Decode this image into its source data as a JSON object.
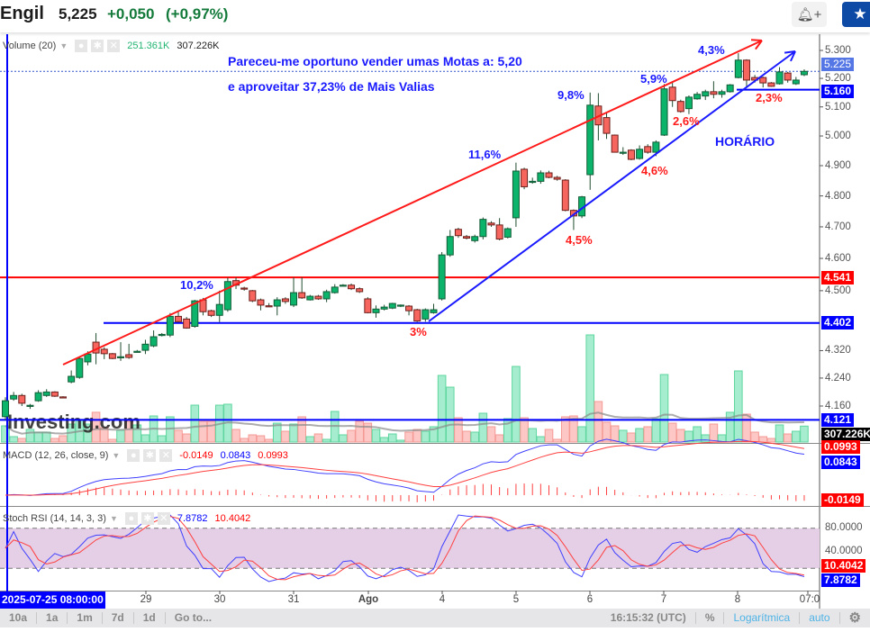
{
  "header": {
    "symbol": "Engil",
    "price": "5,225",
    "change": "+0,050",
    "change_pct": "(+0,97%)",
    "alert_icon": "bell-plus-icon",
    "watchlist_icon": "star-icon"
  },
  "colors": {
    "up": "#0bb36b",
    "down": "#f7665e",
    "accent_blue": "#0000ff",
    "accent_red": "#ff0000",
    "change_green": "#137a3a"
  },
  "legends": {
    "volume": {
      "label": "Volume (20)",
      "ma_value": "251.361K",
      "value": "307.226K"
    },
    "macd": {
      "label": "MACD (12, 26, close, 9)",
      "hist": "-0.0149",
      "macd": "0.0843",
      "signal": "0.0993"
    },
    "stoch_rsi": {
      "label": "Stoch RSI (14, 14, 3, 3)",
      "k": "7.8782",
      "d": "10.4042"
    }
  },
  "annotations": {
    "note_line1": "Pareceu-me oportuno vender umas Motas a: 5,20",
    "note_line2": "e aproveitar 37,23% de Mais Valias",
    "timeframe": "HORÁRIO",
    "pct_labels": [
      "10,2%",
      "3%",
      "11,6%",
      "4,5%",
      "9,8%",
      "5,9%",
      "2,6%",
      "4,6%",
      "4,3%",
      "2,3%"
    ],
    "levels": {
      "resistance": 4.541,
      "support": 4.402,
      "base": 4.121,
      "recent": 5.16
    }
  },
  "price_axis": {
    "scale": "log",
    "ticks": [
      "5.300",
      "5.200",
      "5.100",
      "5.000",
      "4.900",
      "4.800",
      "4.700",
      "4.600",
      "4.500",
      "4.320",
      "4.240",
      "4.160"
    ],
    "badges": {
      "last": "5.225",
      "recent": "5.160",
      "resistance": "4.541",
      "support": "4.402",
      "base": "4.121",
      "volume": "307.226K"
    }
  },
  "macd_axis": {
    "signal": "0.0993",
    "macd": "0.0843",
    "hist": "-0.0149"
  },
  "stoch_axis": {
    "ticks": [
      "80.0000",
      "40.0000"
    ],
    "d": "10.4042",
    "k": "7.8782"
  },
  "time_axis": {
    "cursor": "2025-07-25 08:00:00",
    "labels": [
      "29",
      "30",
      "31",
      "Ago",
      "4",
      "5",
      "6",
      "7",
      "8",
      "07:0"
    ]
  },
  "chart_data": {
    "type": "candlestick",
    "interval": "1h",
    "ohlc": [
      [
        4.13,
        4.185,
        4.12,
        4.175
      ],
      [
        4.18,
        4.2,
        4.175,
        4.19
      ],
      [
        4.19,
        4.195,
        4.16,
        4.168
      ],
      [
        4.162,
        4.166,
        4.152,
        4.162
      ],
      [
        4.175,
        4.205,
        4.172,
        4.198
      ],
      [
        4.19,
        4.208,
        4.186,
        4.2
      ],
      [
        4.2,
        4.202,
        4.186,
        4.188
      ],
      [
        4.186,
        4.188,
        4.184,
        4.185
      ],
      [
        4.229,
        4.262,
        4.225,
        4.245
      ],
      [
        4.242,
        4.3,
        4.238,
        4.297
      ],
      [
        4.287,
        4.318,
        4.277,
        4.31
      ],
      [
        4.345,
        4.372,
        4.28,
        4.313
      ],
      [
        4.324,
        4.33,
        4.295,
        4.311
      ],
      [
        4.311,
        4.313,
        4.295,
        4.297
      ],
      [
        4.3,
        4.345,
        4.29,
        4.302
      ],
      [
        4.308,
        4.34,
        4.296,
        4.3
      ],
      [
        4.316,
        4.322,
        4.316,
        4.318
      ],
      [
        4.321,
        4.352,
        4.31,
        4.339
      ],
      [
        4.334,
        4.38,
        4.33,
        4.361
      ],
      [
        4.366,
        4.372,
        4.362,
        4.368
      ],
      [
        4.366,
        4.432,
        4.36,
        4.422
      ],
      [
        4.422,
        4.436,
        4.404,
        4.406
      ],
      [
        4.414,
        4.42,
        4.385,
        4.387
      ],
      [
        4.392,
        4.472,
        4.388,
        4.469
      ],
      [
        4.472,
        4.478,
        4.425,
        4.436
      ],
      [
        4.439,
        4.442,
        4.42,
        4.425
      ],
      [
        4.425,
        4.5,
        4.405,
        4.458
      ],
      [
        4.442,
        4.54,
        4.436,
        4.528
      ],
      [
        4.531,
        4.541,
        4.505,
        4.517
      ],
      [
        4.508,
        4.512,
        4.5,
        4.506
      ],
      [
        4.5,
        4.502,
        4.465,
        4.469
      ],
      [
        4.472,
        4.476,
        4.44,
        4.456
      ],
      [
        4.454,
        4.462,
        4.45,
        4.453
      ],
      [
        4.453,
        4.48,
        4.425,
        4.472
      ],
      [
        4.475,
        4.48,
        4.46,
        4.467
      ],
      [
        4.456,
        4.541,
        4.45,
        4.494
      ],
      [
        4.494,
        4.541,
        4.475,
        4.478
      ],
      [
        4.472,
        4.487,
        4.47,
        4.483
      ],
      [
        4.483,
        4.487,
        4.472,
        4.475
      ],
      [
        4.475,
        4.503,
        4.465,
        4.497
      ],
      [
        4.494,
        4.52,
        4.491,
        4.511
      ],
      [
        4.516,
        4.52,
        4.514,
        4.517
      ],
      [
        4.517,
        4.522,
        4.502,
        4.506
      ],
      [
        4.506,
        4.51,
        4.493,
        4.497
      ],
      [
        4.475,
        4.48,
        4.431,
        4.433
      ],
      [
        4.433,
        4.455,
        4.418,
        4.444
      ],
      [
        4.444,
        4.457,
        4.44,
        4.45
      ],
      [
        4.447,
        4.463,
        4.444,
        4.461
      ],
      [
        4.456,
        4.458,
        4.45,
        4.456
      ],
      [
        4.453,
        4.456,
        4.425,
        4.439
      ],
      [
        4.442,
        4.445,
        4.405,
        4.408
      ],
      [
        4.414,
        4.446,
        4.406,
        4.442
      ],
      [
        4.433,
        4.46,
        4.43,
        4.442
      ],
      [
        4.475,
        4.62,
        4.47,
        4.611
      ],
      [
        4.611,
        4.69,
        4.605,
        4.669
      ],
      [
        4.692,
        4.697,
        4.665,
        4.672
      ],
      [
        4.669,
        4.674,
        4.66,
        4.664
      ],
      [
        4.656,
        4.675,
        4.65,
        4.669
      ],
      [
        4.669,
        4.73,
        4.66,
        4.724
      ],
      [
        4.712,
        4.718,
        4.7,
        4.706
      ],
      [
        4.706,
        4.728,
        4.657,
        4.661
      ],
      [
        4.667,
        4.698,
        4.663,
        4.694
      ],
      [
        4.729,
        4.91,
        4.7,
        4.882
      ],
      [
        4.888,
        4.893,
        4.822,
        4.83
      ],
      [
        4.848,
        4.86,
        4.84,
        4.848
      ],
      [
        4.848,
        4.884,
        4.84,
        4.876
      ],
      [
        4.876,
        4.883,
        4.858,
        4.861
      ],
      [
        4.861,
        4.866,
        4.85,
        4.855
      ],
      [
        4.852,
        4.855,
        4.75,
        4.753
      ],
      [
        4.753,
        4.756,
        4.69,
        4.735
      ],
      [
        4.735,
        4.8,
        4.728,
        4.797
      ],
      [
        4.87,
        5.15,
        4.82,
        5.106
      ],
      [
        5.103,
        5.148,
        4.985,
        5.038
      ],
      [
        5.063,
        5.08,
        4.99,
        5.009
      ],
      [
        5.003,
        5.005,
        4.945,
        4.945
      ],
      [
        4.945,
        4.962,
        4.936,
        4.945
      ],
      [
        4.952,
        4.955,
        4.918,
        4.921
      ],
      [
        4.924,
        4.968,
        4.92,
        4.955
      ],
      [
        4.964,
        4.972,
        4.94,
        4.945
      ],
      [
        4.945,
        4.985,
        4.932,
        4.979
      ],
      [
        5.003,
        5.18,
        5.0,
        5.163
      ],
      [
        5.169,
        5.19,
        5.1,
        5.122
      ],
      [
        5.119,
        5.125,
        5.08,
        5.084
      ],
      [
        5.094,
        5.14,
        5.075,
        5.134
      ],
      [
        5.128,
        5.152,
        5.125,
        5.144
      ],
      [
        5.138,
        5.16,
        5.124,
        5.153
      ],
      [
        5.153,
        5.19,
        5.13,
        5.144
      ],
      [
        5.144,
        5.16,
        5.132,
        5.153
      ],
      [
        5.153,
        5.18,
        5.15,
        5.177
      ],
      [
        5.203,
        5.29,
        5.2,
        5.265
      ],
      [
        5.265,
        5.268,
        5.17,
        5.194
      ],
      [
        5.203,
        5.212,
        5.185,
        5.194
      ],
      [
        5.203,
        5.206,
        5.168,
        5.184
      ],
      [
        5.184,
        5.187,
        5.17,
        5.172
      ],
      [
        5.181,
        5.24,
        5.178,
        5.223
      ],
      [
        5.219,
        5.223,
        5.185,
        5.194
      ],
      [
        5.181,
        5.205,
        5.177,
        5.194
      ],
      [
        5.213,
        5.232,
        5.208,
        5.225
      ]
    ],
    "volume_k": [
      312,
      104,
      69,
      243,
      191,
      191,
      69,
      121,
      347,
      434,
      347,
      573,
      278,
      52,
      226,
      399,
      330,
      139,
      503,
      121,
      486,
      226,
      156,
      711,
      399,
      399,
      711,
      729,
      243,
      69,
      139,
      121,
      52,
      364,
      208,
      347,
      486,
      104,
      156,
      52,
      590,
      139,
      226,
      399,
      364,
      243,
      87,
      156,
      35,
      191,
      243,
      208,
      295,
      1284,
      1058,
      468,
      208,
      191,
      555,
      295,
      139,
      451,
      1457,
      468,
      260,
      104,
      243,
      52,
      486,
      503,
      295,
      2065,
      781,
      382,
      312,
      226,
      174,
      260,
      295,
      451,
      1301,
      364,
      243,
      208,
      295,
      139,
      347,
      139,
      573,
      1371,
      538,
      191,
      104,
      69,
      330,
      156,
      208,
      307.226
    ],
    "yrange": [
      4.1,
      5.32
    ]
  },
  "toolbar": {
    "ranges": [
      "10a",
      "1a",
      "1m",
      "7d",
      "1d"
    ],
    "goto": "Go to...",
    "clock": "16:15:32 (UTC)",
    "percent": "%",
    "log": "Logarítmica",
    "auto": "auto",
    "settings_icon": "gear-icon"
  }
}
